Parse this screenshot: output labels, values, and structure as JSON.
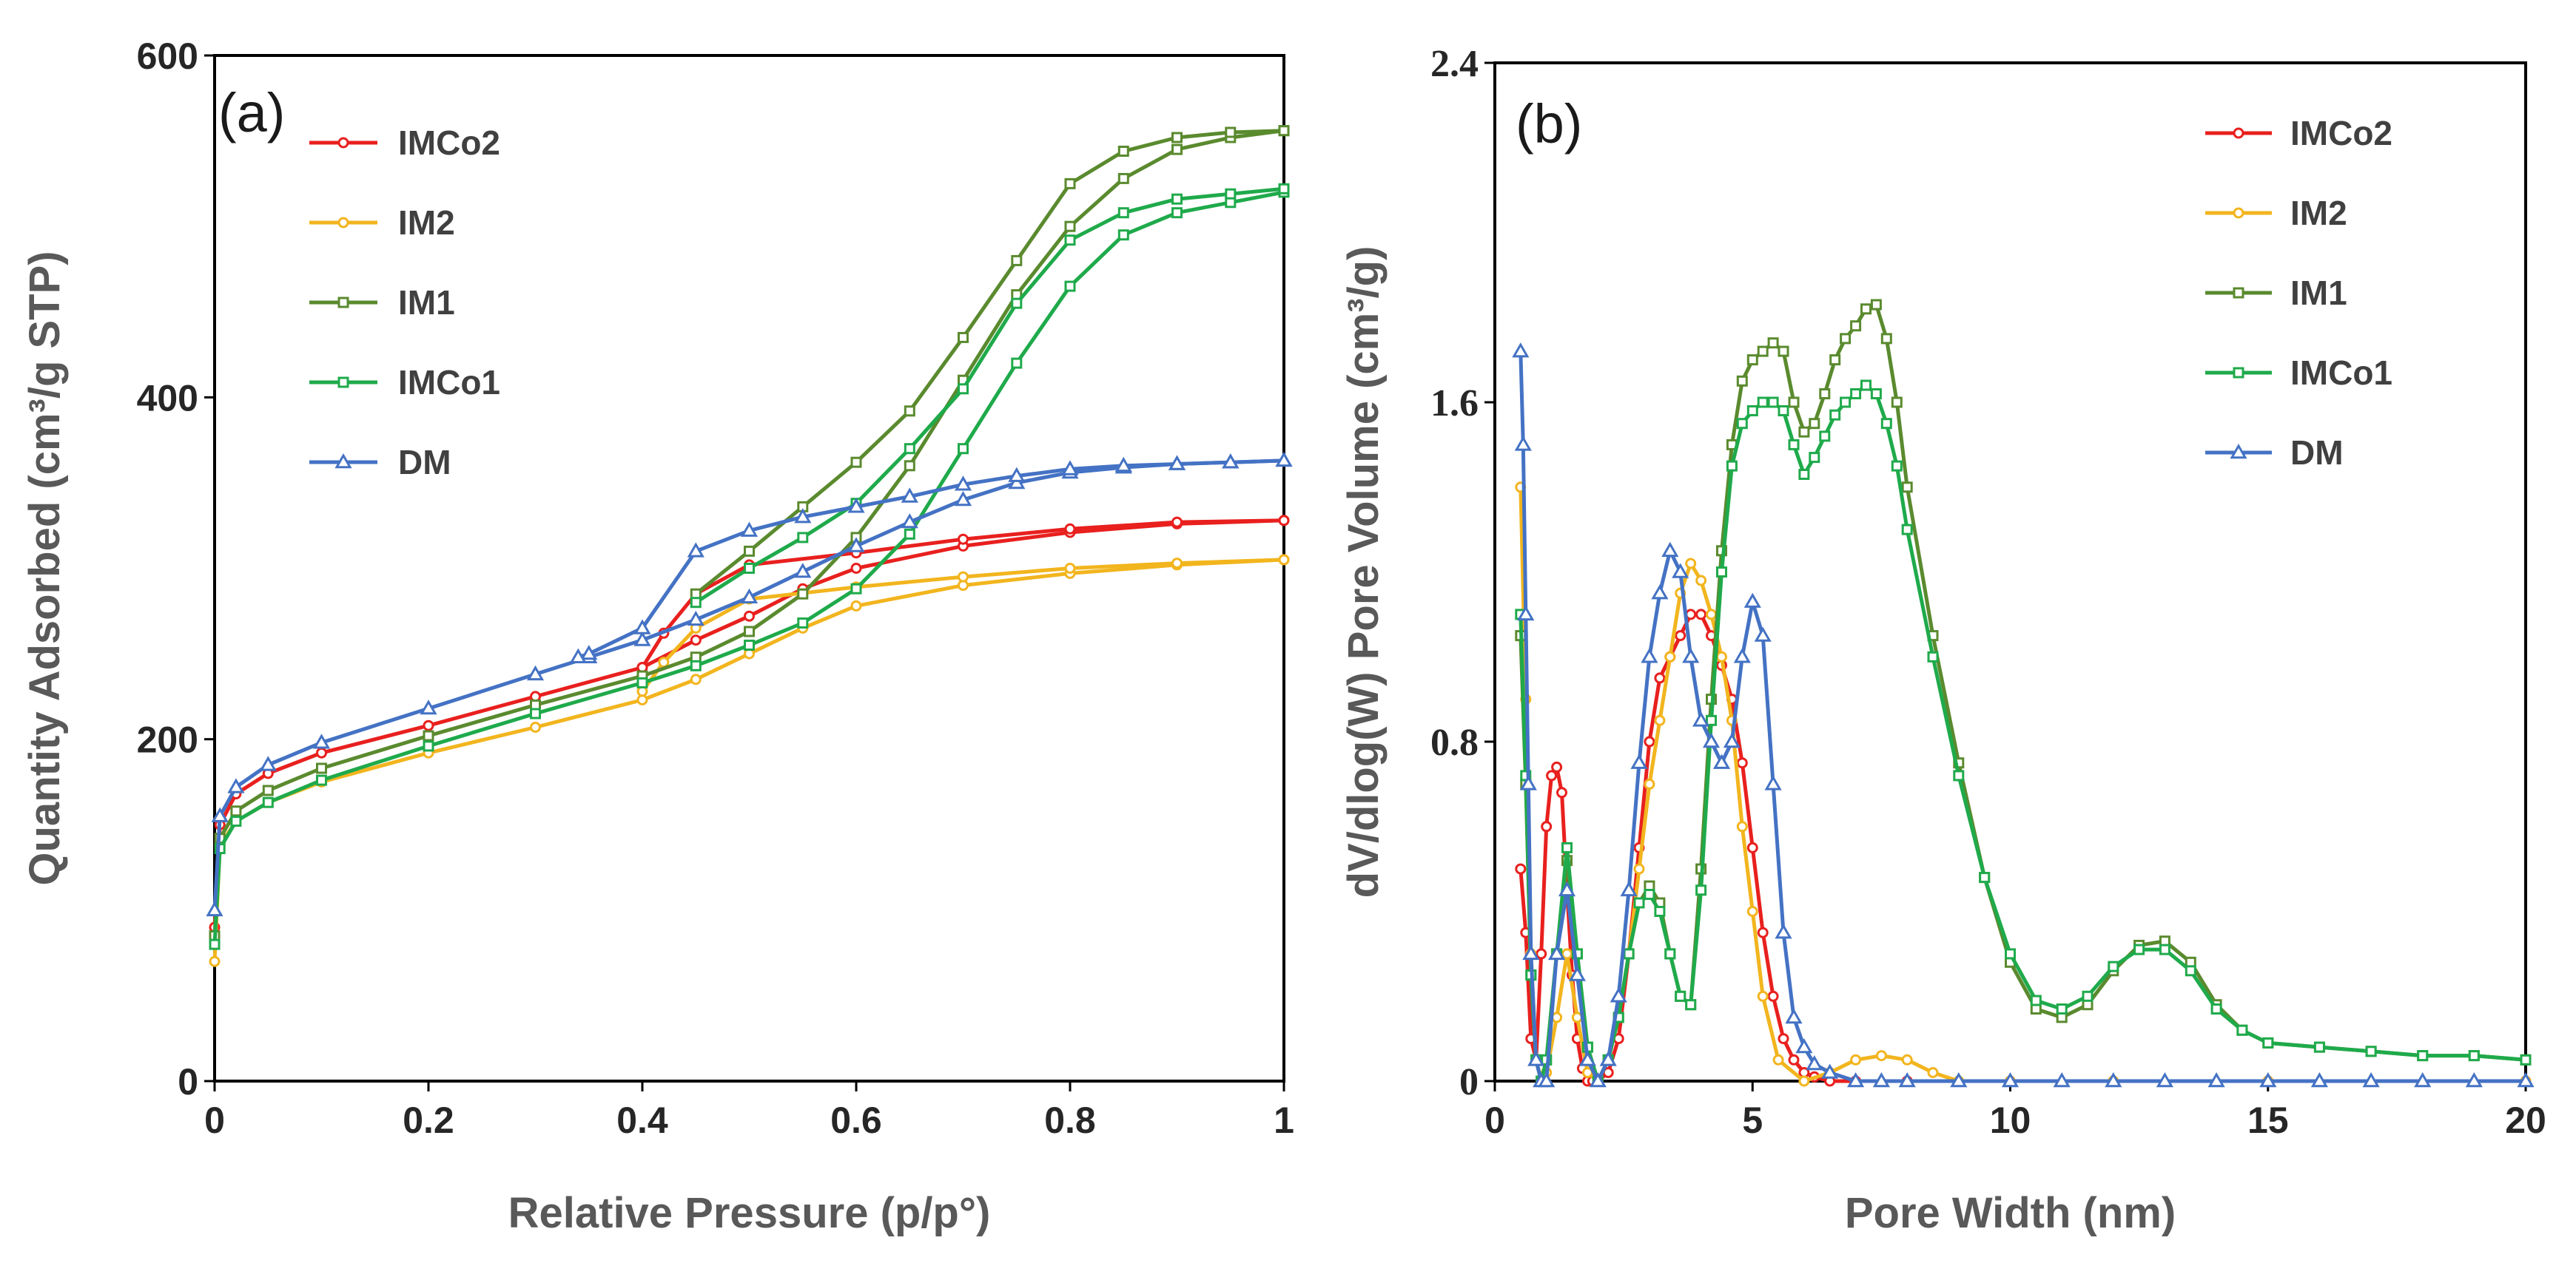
{
  "chart_data": [
    {
      "type": "line",
      "panel_label": "(a)",
      "xlabel": "Relative Pressure (p/p°)",
      "ylabel": "Quantity Adsorbed (cm³/g STP)",
      "xlim": [
        0,
        1
      ],
      "ylim": [
        0,
        600
      ],
      "xticks": [
        0,
        0.2,
        0.4,
        0.6,
        0.8,
        1
      ],
      "xtick_labels": [
        "0",
        "0.2",
        "0.4",
        "0.6",
        "0.8",
        "1"
      ],
      "yticks": [
        0,
        200,
        400,
        600
      ],
      "ytick_labels": [
        "0",
        "200",
        "400",
        "600"
      ],
      "grid": false,
      "legend_position": "top-left",
      "series": [
        {
          "name": "IMCo2",
          "color": "#e8201e",
          "marker": "circle",
          "adsorption": {
            "x": [
              0.0,
              0.005,
              0.02,
              0.05,
              0.1,
              0.2,
              0.3,
              0.4,
              0.45,
              0.5,
              0.55,
              0.6,
              0.7,
              0.8,
              0.9,
              1.0
            ],
            "y": [
              90,
              150,
              168,
              180,
              192,
              208,
              225,
              242,
              258,
              272,
              288,
              300,
              313,
              321,
              326,
              328
            ]
          },
          "desorption": {
            "x": [
              1.0,
              0.9,
              0.8,
              0.7,
              0.6,
              0.5,
              0.45,
              0.42,
              0.4
            ],
            "y": [
              328,
              327,
              323,
              317,
              309,
              302,
              285,
              262,
              242
            ]
          }
        },
        {
          "name": "IM2",
          "color": "#f2b51e",
          "marker": "circle",
          "adsorption": {
            "x": [
              0.0,
              0.005,
              0.02,
              0.05,
              0.1,
              0.2,
              0.3,
              0.4,
              0.45,
              0.5,
              0.55,
              0.6,
              0.7,
              0.8,
              0.9,
              1.0
            ],
            "y": [
              70,
              138,
              152,
              163,
              175,
              192,
              207,
              223,
              235,
              250,
              265,
              278,
              290,
              297,
              302,
              305
            ]
          },
          "desorption": {
            "x": [
              1.0,
              0.9,
              0.8,
              0.7,
              0.6,
              0.5,
              0.45,
              0.42,
              0.4
            ],
            "y": [
              305,
              303,
              300,
              295,
              289,
              282,
              265,
              245,
              228
            ]
          }
        },
        {
          "name": "IM1",
          "color": "#5a8a2e",
          "marker": "square",
          "adsorption": {
            "x": [
              0.0,
              0.005,
              0.02,
              0.05,
              0.1,
              0.2,
              0.3,
              0.4,
              0.45,
              0.5,
              0.55,
              0.6,
              0.65,
              0.7,
              0.75,
              0.8,
              0.85,
              0.9,
              0.95,
              1.0
            ],
            "y": [
              85,
              142,
              158,
              170,
              183,
              202,
              220,
              237,
              248,
              263,
              285,
              318,
              360,
              410,
              460,
              500,
              528,
              545,
              552,
              556
            ]
          },
          "desorption": {
            "x": [
              1.0,
              0.95,
              0.9,
              0.85,
              0.8,
              0.75,
              0.7,
              0.65,
              0.6,
              0.55,
              0.5,
              0.45
            ],
            "y": [
              556,
              555,
              552,
              544,
              525,
              480,
              435,
              392,
              362,
              336,
              310,
              285
            ]
          }
        },
        {
          "name": "IMCo1",
          "color": "#1faa4b",
          "marker": "square",
          "adsorption": {
            "x": [
              0.0,
              0.005,
              0.02,
              0.05,
              0.1,
              0.2,
              0.3,
              0.4,
              0.45,
              0.5,
              0.55,
              0.6,
              0.65,
              0.7,
              0.75,
              0.8,
              0.85,
              0.9,
              0.95,
              1.0
            ],
            "y": [
              80,
              136,
              152,
              163,
              176,
              196,
              215,
              233,
              243,
              255,
              268,
              288,
              320,
              370,
              420,
              465,
              495,
              508,
              514,
              520
            ]
          },
          "desorption": {
            "x": [
              1.0,
              0.95,
              0.9,
              0.85,
              0.8,
              0.75,
              0.7,
              0.65,
              0.6,
              0.55,
              0.5,
              0.45
            ],
            "y": [
              522,
              519,
              516,
              508,
              492,
              455,
              405,
              370,
              338,
              318,
              300,
              280
            ]
          }
        },
        {
          "name": "DM",
          "color": "#4472c4",
          "marker": "triangle",
          "adsorption": {
            "x": [
              0.0,
              0.005,
              0.02,
              0.05,
              0.1,
              0.2,
              0.3,
              0.35,
              0.4,
              0.45,
              0.5,
              0.55,
              0.6,
              0.65,
              0.7,
              0.75,
              0.8,
              0.85,
              0.9,
              0.95,
              1.0
            ],
            "y": [
              100,
              155,
              172,
              185,
              198,
              218,
              238,
              248,
              258,
              270,
              283,
              298,
              313,
              327,
              340,
              350,
              356,
              359,
              361,
              362,
              363
            ]
          },
          "desorption": {
            "x": [
              1.0,
              0.95,
              0.9,
              0.85,
              0.8,
              0.75,
              0.7,
              0.65,
              0.6,
              0.55,
              0.5,
              0.45,
              0.4,
              0.35,
              0.34
            ],
            "y": [
              363,
              362,
              361,
              360,
              358,
              354,
              349,
              342,
              336,
              330,
              322,
              310,
              265,
              250,
              248
            ]
          }
        }
      ]
    },
    {
      "type": "line",
      "panel_label": "(b)",
      "xlabel": "Pore Width (nm)",
      "ylabel": "dV/dlog(W) Pore Volume (cm³/g)",
      "xlim": [
        0,
        20
      ],
      "ylim": [
        0,
        2.4
      ],
      "xticks": [
        0,
        5,
        10,
        15,
        20
      ],
      "xtick_labels": [
        "0",
        "5",
        "10",
        "15",
        "20"
      ],
      "yticks": [
        0,
        0.8,
        1.6,
        2.4
      ],
      "ytick_labels": [
        "0",
        "0.8",
        "1.6",
        "2.4"
      ],
      "grid": false,
      "legend_position": "top-right",
      "series": [
        {
          "name": "IMCo2",
          "color": "#e8201e",
          "marker": "circle",
          "x": [
            0.5,
            0.6,
            0.7,
            0.8,
            0.9,
            1.0,
            1.1,
            1.2,
            1.3,
            1.4,
            1.5,
            1.6,
            1.7,
            1.8,
            1.9,
            2.0,
            2.2,
            2.4,
            2.6,
            2.8,
            3.0,
            3.2,
            3.4,
            3.6,
            3.8,
            4.0,
            4.2,
            4.4,
            4.6,
            4.8,
            5.0,
            5.2,
            5.4,
            5.6,
            5.8,
            6.0,
            6.2,
            6.5,
            7.0,
            8.0,
            10.0,
            12.0,
            15.0,
            20.0
          ],
          "y": [
            0.5,
            0.35,
            0.1,
            0.05,
            0.3,
            0.6,
            0.72,
            0.74,
            0.68,
            0.45,
            0.25,
            0.1,
            0.03,
            0.0,
            0.0,
            0.0,
            0.02,
            0.1,
            0.3,
            0.55,
            0.8,
            0.95,
            1.0,
            1.05,
            1.1,
            1.1,
            1.05,
            0.98,
            0.9,
            0.75,
            0.55,
            0.35,
            0.2,
            0.1,
            0.05,
            0.02,
            0.01,
            0.0,
            0.0,
            0.0,
            0.0,
            0.0,
            0.0,
            0.0
          ]
        },
        {
          "name": "IM2",
          "color": "#f2b51e",
          "marker": "circle",
          "x": [
            0.5,
            0.6,
            0.7,
            0.8,
            0.9,
            1.0,
            1.2,
            1.4,
            1.6,
            1.8,
            2.0,
            2.2,
            2.4,
            2.6,
            2.8,
            3.0,
            3.2,
            3.4,
            3.6,
            3.8,
            4.0,
            4.2,
            4.4,
            4.6,
            4.8,
            5.0,
            5.2,
            5.5,
            6.0,
            6.5,
            7.0,
            7.5,
            8.0,
            8.5,
            9.0,
            10.0,
            12.0,
            15.0,
            20.0
          ],
          "y": [
            1.4,
            0.9,
            0.3,
            0.05,
            0.0,
            0.02,
            0.15,
            0.3,
            0.15,
            0.02,
            0.0,
            0.05,
            0.15,
            0.3,
            0.5,
            0.7,
            0.85,
            1.0,
            1.15,
            1.22,
            1.18,
            1.1,
            1.0,
            0.85,
            0.6,
            0.4,
            0.2,
            0.05,
            0.0,
            0.02,
            0.05,
            0.06,
            0.05,
            0.02,
            0.0,
            0.0,
            0.0,
            0.0,
            0.0
          ]
        },
        {
          "name": "IM1",
          "color": "#5a8a2e",
          "marker": "square",
          "x": [
            0.5,
            0.6,
            0.7,
            0.8,
            0.9,
            1.0,
            1.2,
            1.4,
            1.6,
            1.8,
            2.0,
            2.2,
            2.4,
            2.6,
            2.8,
            3.0,
            3.2,
            3.4,
            3.6,
            3.8,
            4.0,
            4.2,
            4.4,
            4.6,
            4.8,
            5.0,
            5.2,
            5.4,
            5.6,
            5.8,
            6.0,
            6.2,
            6.4,
            6.6,
            6.8,
            7.0,
            7.2,
            7.4,
            7.6,
            7.8,
            8.0,
            8.5,
            9.0,
            9.5,
            10.0,
            10.5,
            11.0,
            11.5,
            12.0,
            12.5,
            13.0,
            13.5,
            14.0,
            14.5,
            15.0,
            16.0,
            17.0,
            18.0,
            19.0,
            20.0
          ],
          "y": [
            1.05,
            0.7,
            0.25,
            0.05,
            0.0,
            0.05,
            0.3,
            0.52,
            0.3,
            0.08,
            0.0,
            0.05,
            0.15,
            0.3,
            0.42,
            0.46,
            0.42,
            0.3,
            0.2,
            0.18,
            0.5,
            0.9,
            1.25,
            1.5,
            1.65,
            1.7,
            1.72,
            1.74,
            1.72,
            1.6,
            1.53,
            1.55,
            1.62,
            1.7,
            1.75,
            1.78,
            1.82,
            1.83,
            1.75,
            1.6,
            1.4,
            1.05,
            0.75,
            0.48,
            0.28,
            0.17,
            0.15,
            0.18,
            0.26,
            0.32,
            0.33,
            0.28,
            0.18,
            0.12,
            0.09,
            0.08,
            0.07,
            0.06,
            0.06,
            0.05
          ]
        },
        {
          "name": "IMCo1",
          "color": "#1faa4b",
          "marker": "square",
          "x": [
            0.5,
            0.6,
            0.7,
            0.8,
            0.9,
            1.0,
            1.2,
            1.4,
            1.6,
            1.8,
            2.0,
            2.2,
            2.4,
            2.6,
            2.8,
            3.0,
            3.2,
            3.4,
            3.6,
            3.8,
            4.0,
            4.2,
            4.4,
            4.6,
            4.8,
            5.0,
            5.2,
            5.4,
            5.6,
            5.8,
            6.0,
            6.2,
            6.4,
            6.6,
            6.8,
            7.0,
            7.2,
            7.4,
            7.6,
            7.8,
            8.0,
            8.5,
            9.0,
            9.5,
            10.0,
            10.5,
            11.0,
            11.5,
            12.0,
            12.5,
            13.0,
            13.5,
            14.0,
            14.5,
            15.0,
            16.0,
            17.0,
            18.0,
            19.0,
            20.0
          ],
          "y": [
            1.1,
            0.72,
            0.25,
            0.05,
            0.0,
            0.05,
            0.3,
            0.55,
            0.3,
            0.08,
            0.0,
            0.05,
            0.15,
            0.3,
            0.42,
            0.44,
            0.4,
            0.3,
            0.2,
            0.18,
            0.45,
            0.85,
            1.2,
            1.45,
            1.55,
            1.58,
            1.6,
            1.6,
            1.58,
            1.5,
            1.43,
            1.47,
            1.52,
            1.57,
            1.6,
            1.62,
            1.64,
            1.62,
            1.55,
            1.45,
            1.3,
            1.0,
            0.72,
            0.48,
            0.3,
            0.19,
            0.17,
            0.2,
            0.27,
            0.31,
            0.31,
            0.26,
            0.17,
            0.12,
            0.09,
            0.08,
            0.07,
            0.06,
            0.06,
            0.05
          ]
        },
        {
          "name": "DM",
          "color": "#4472c4",
          "marker": "triangle",
          "x": [
            0.5,
            0.55,
            0.6,
            0.65,
            0.7,
            0.8,
            0.9,
            1.0,
            1.2,
            1.4,
            1.6,
            1.8,
            2.0,
            2.2,
            2.4,
            2.6,
            2.8,
            3.0,
            3.2,
            3.4,
            3.6,
            3.8,
            4.0,
            4.2,
            4.4,
            4.6,
            4.8,
            5.0,
            5.2,
            5.4,
            5.6,
            5.8,
            6.0,
            6.2,
            6.5,
            7.0,
            7.5,
            8.0,
            9.0,
            10.0,
            11.0,
            12.0,
            13.0,
            14.0,
            15.0,
            16.0,
            17.0,
            18.0,
            19.0,
            20.0
          ],
          "y": [
            1.72,
            1.5,
            1.1,
            0.7,
            0.3,
            0.05,
            0.0,
            0.0,
            0.3,
            0.45,
            0.25,
            0.05,
            0.0,
            0.05,
            0.2,
            0.45,
            0.75,
            1.0,
            1.15,
            1.25,
            1.2,
            1.0,
            0.85,
            0.8,
            0.75,
            0.8,
            1.0,
            1.13,
            1.05,
            0.7,
            0.35,
            0.15,
            0.08,
            0.04,
            0.02,
            0.0,
            0.0,
            0.0,
            0.0,
            0.0,
            0.0,
            0.0,
            0.0,
            0.0,
            0.0,
            0.0,
            0.0,
            0.0,
            0.0,
            0.0
          ]
        }
      ]
    }
  ]
}
